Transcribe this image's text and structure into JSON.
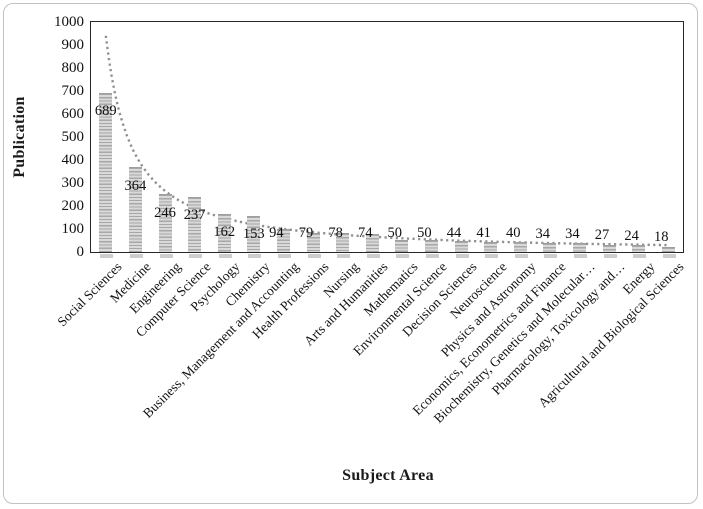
{
  "figure": {
    "background": "#ffffff",
    "border_color": "#c2c2c2"
  },
  "chart_data": {
    "type": "bar",
    "title": "",
    "xlabel": "Subject Area",
    "ylabel": "Publication",
    "categories": [
      "Social Sciences",
      "Medicine",
      "Engineering",
      "Computer Science",
      "Psychology",
      "Chemistry",
      "Business, Management and Accounting",
      "Health Professions",
      "Nursing",
      "Arts and Humanities",
      "Mathematics",
      "Environmental Science",
      "Decision Sciences",
      "Neuroscience",
      "Physics and Astronomy",
      "Economics, Econometrics and Finance",
      "Biochemistry, Genetics and Molecular…",
      "Pharmacology, Toxicology and…",
      "Energy",
      "Agricultural and Biological Sciences"
    ],
    "values": [
      689,
      364,
      246,
      237,
      162,
      153,
      94,
      79,
      78,
      74,
      50,
      50,
      44,
      41,
      40,
      34,
      34,
      27,
      24,
      18
    ],
    "data_labels": [
      "689",
      "364",
      "246",
      "237",
      "162",
      "153",
      "94",
      "79",
      "78",
      "74",
      "50",
      "50",
      "44",
      "41",
      "40",
      "34",
      "34",
      "27",
      "24",
      "18"
    ],
    "ylim": [
      0,
      1000
    ],
    "ytick_step": 100,
    "yticks": [
      "0",
      "100",
      "200",
      "300",
      "400",
      "500",
      "600",
      "700",
      "800",
      "900",
      "1000"
    ],
    "grid": "off",
    "legend": "none",
    "bar_fill_light": "#d9d9d9",
    "bar_stripe_dark": "#a8a8a8",
    "axis_color": "#262626",
    "trendline": {
      "type": "power",
      "a": 940,
      "b": -1.15,
      "style": "dotted",
      "color": "#8f8f8f"
    }
  }
}
